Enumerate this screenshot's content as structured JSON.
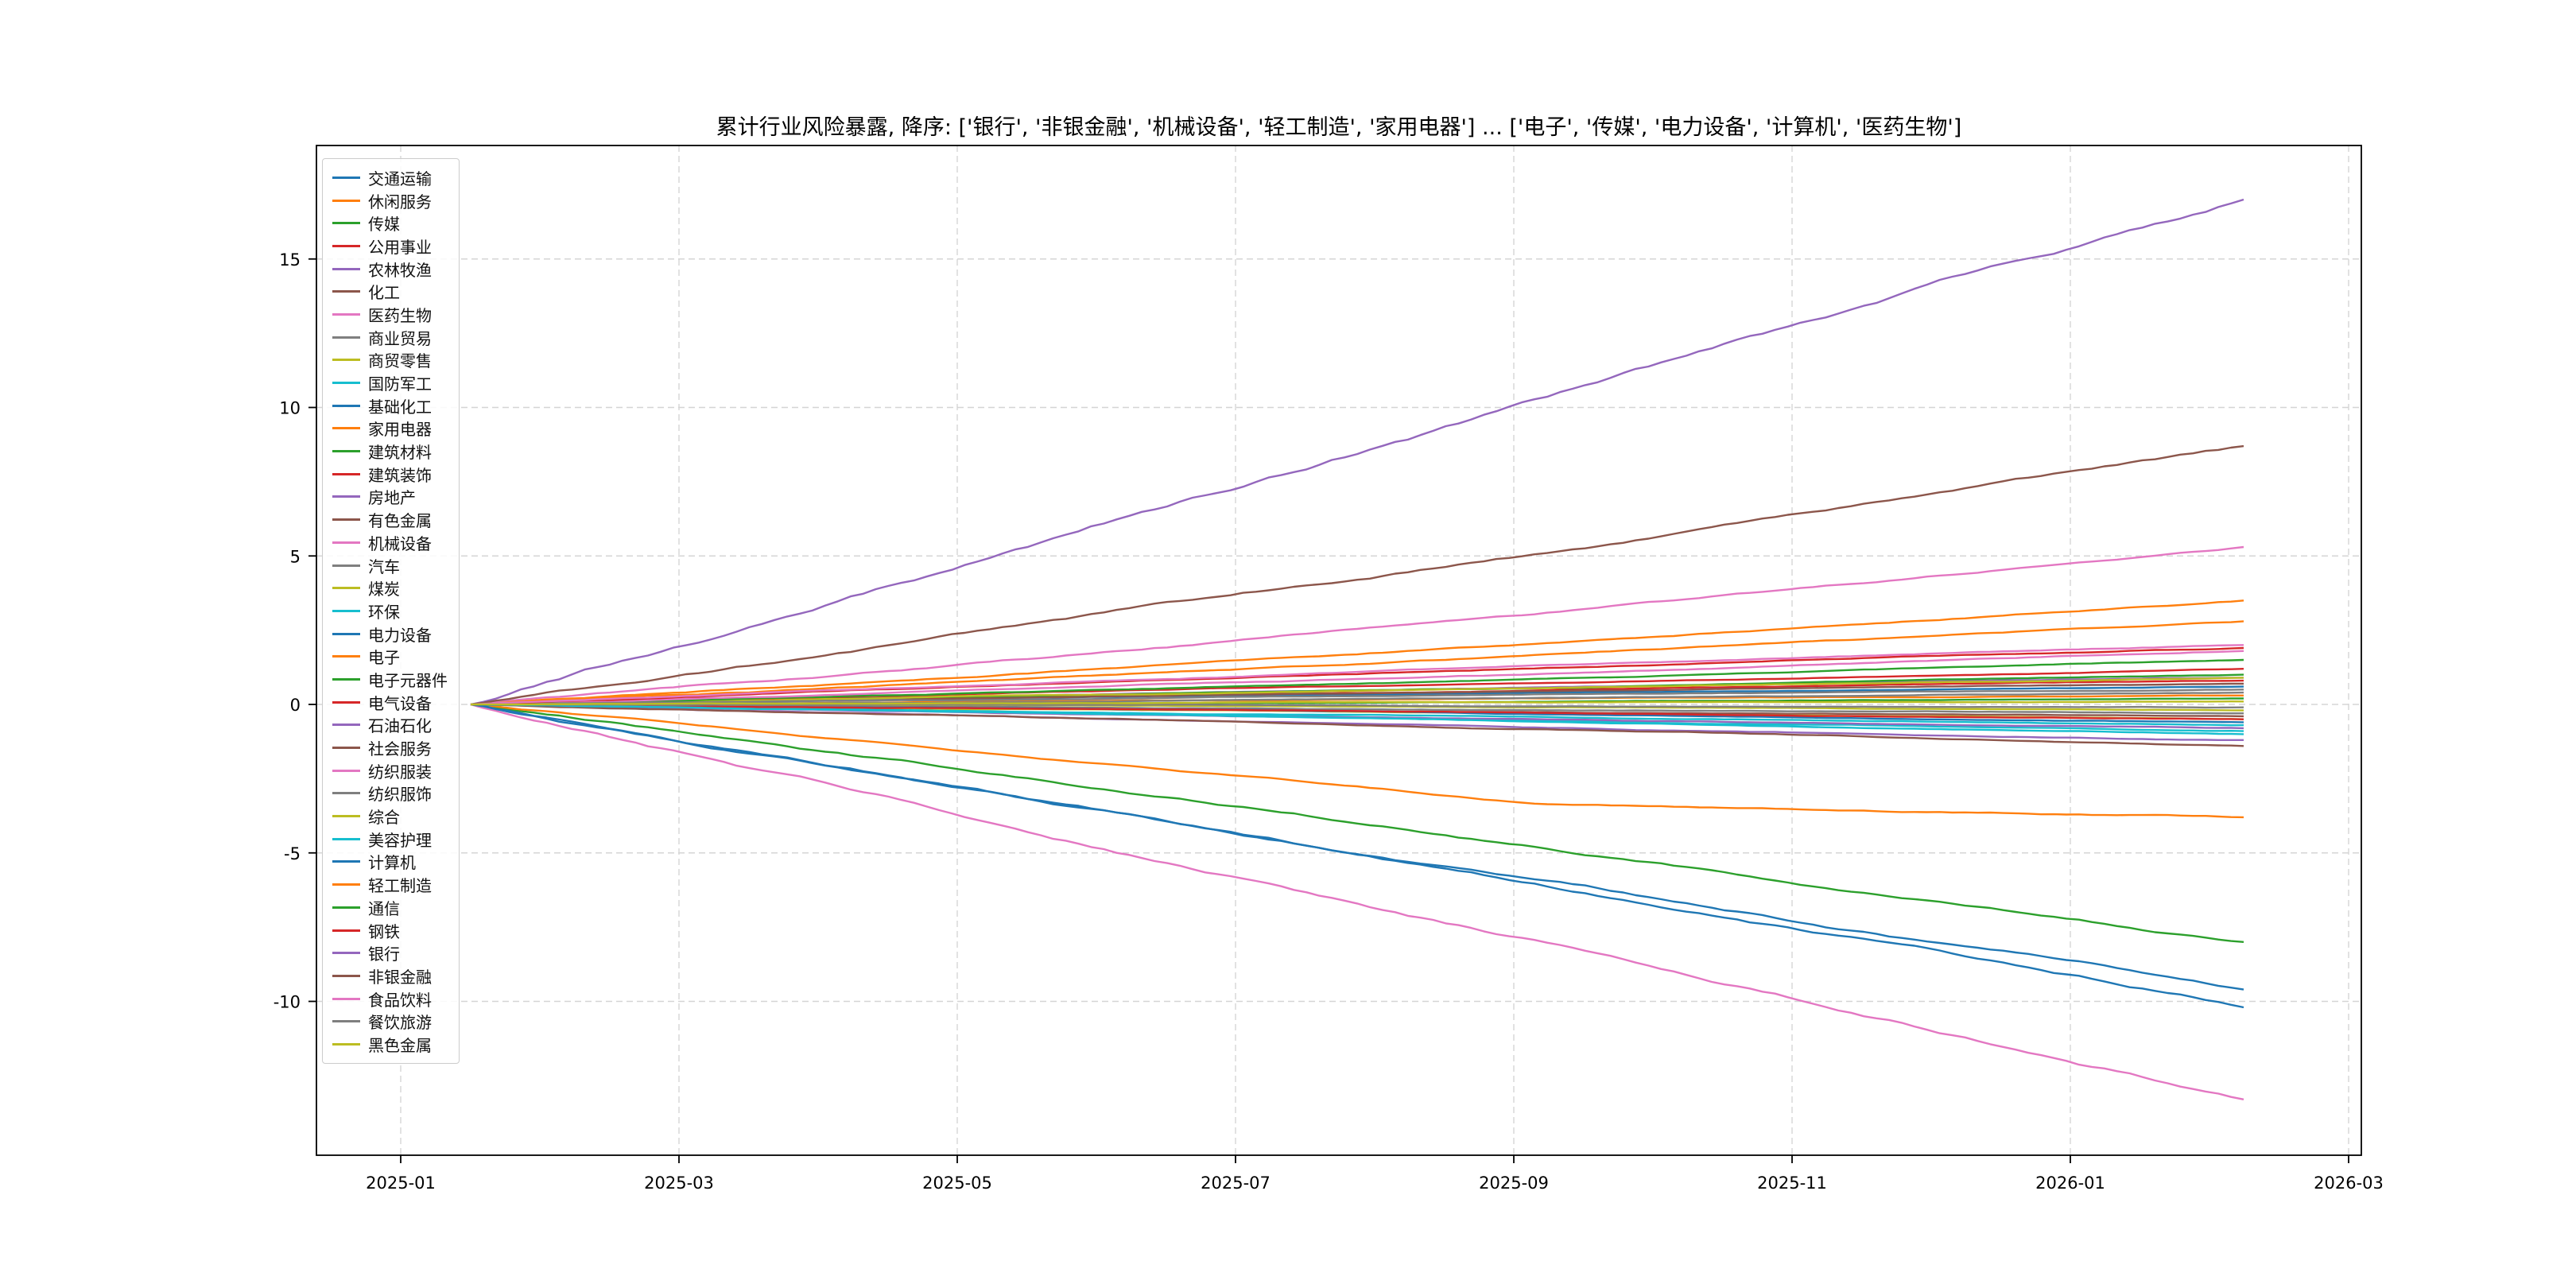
{
  "chart_data": {
    "type": "line",
    "title": "累计行业风险暴露, 降序: ['银行', '非银金融', '机械设备', '轻工制造', '家用电器'] ... ['电子', '传媒', '电力设备', '计算机', '医药生物']",
    "xlabel": "",
    "ylabel": "",
    "x_tick_labels": [
      "2025-01",
      "2025-03",
      "2025-05",
      "2025-07",
      "2025-09",
      "2025-11",
      "2026-01",
      "2026-03"
    ],
    "y_ticks": [
      -10,
      -5,
      0,
      5,
      10,
      15
    ],
    "ylim": [
      -15.2,
      18.8
    ],
    "x_data_start": "2025-01-15",
    "x_data_end": "2026-02-08",
    "grid": true,
    "grid_style": "dashed",
    "legend_position": "upper left",
    "top5_desc": [
      "银行",
      "非银金融",
      "机械设备",
      "轻工制造",
      "家用电器"
    ],
    "bottom5_desc": [
      "电子",
      "传媒",
      "电力设备",
      "计算机",
      "医药生物"
    ],
    "series": [
      {
        "name": "交通运输",
        "color": "#1f77b4",
        "start": 0,
        "end": 0.6
      },
      {
        "name": "休闲服务",
        "color": "#ff7f0e",
        "start": 0,
        "end": 0.3
      },
      {
        "name": "传媒",
        "color": "#2ca02c",
        "start": 0,
        "end": -8.0
      },
      {
        "name": "公用事业",
        "color": "#d62728",
        "start": 0,
        "end": 0.8
      },
      {
        "name": "农林牧渔",
        "color": "#9467bd",
        "start": 0,
        "end": 0.9
      },
      {
        "name": "化工",
        "color": "#8c564b",
        "start": 0,
        "end": -0.4
      },
      {
        "name": "医药生物",
        "color": "#e377c2",
        "start": 0,
        "end": -13.3
      },
      {
        "name": "商业贸易",
        "color": "#7f7f7f",
        "start": 0,
        "end": -0.3
      },
      {
        "name": "商贸零售",
        "color": "#bcbd22",
        "start": 0,
        "end": -0.5
      },
      {
        "name": "国防军工",
        "color": "#17becf",
        "start": 0,
        "end": -0.9
      },
      {
        "name": "基础化工",
        "color": "#1f77b4",
        "start": 0,
        "end": -0.6
      },
      {
        "name": "家用电器",
        "color": "#ff7f0e",
        "start": 0,
        "end": 2.8
      },
      {
        "name": "建筑材料",
        "color": "#2ca02c",
        "start": 0,
        "end": 1.0
      },
      {
        "name": "建筑装饰",
        "color": "#d62728",
        "start": 0,
        "end": 1.2
      },
      {
        "name": "房地产",
        "color": "#9467bd",
        "start": 0,
        "end": -1.2
      },
      {
        "name": "有色金属",
        "color": "#8c564b",
        "start": 0,
        "end": 0.7
      },
      {
        "name": "机械设备",
        "color": "#e377c2",
        "start": 0,
        "end": 5.3
      },
      {
        "name": "汽车",
        "color": "#7f7f7f",
        "start": 0,
        "end": 0.4
      },
      {
        "name": "煤炭",
        "color": "#bcbd22",
        "start": 0,
        "end": 0.9
      },
      {
        "name": "环保",
        "color": "#17becf",
        "start": 0,
        "end": -0.7
      },
      {
        "name": "电力设备",
        "color": "#1f77b4",
        "start": 0,
        "end": -9.6
      },
      {
        "name": "电子",
        "color": "#ff7f0e",
        "start": 0,
        "end": -3.8,
        "mid": -3.3
      },
      {
        "name": "电子元器件",
        "color": "#2ca02c",
        "start": 0,
        "end": 1.5
      },
      {
        "name": "电气设备",
        "color": "#d62728",
        "start": 0,
        "end": -0.5
      },
      {
        "name": "石油石化",
        "color": "#9467bd",
        "start": 0,
        "end": -0.8
      },
      {
        "name": "社会服务",
        "color": "#8c564b",
        "start": 0,
        "end": -1.4
      },
      {
        "name": "纺织服装",
        "color": "#e377c2",
        "start": 0,
        "end": 1.8
      },
      {
        "name": "纺织服饰",
        "color": "#7f7f7f",
        "start": 0,
        "end": 0.5
      },
      {
        "name": "综合",
        "color": "#bcbd22",
        "start": 0,
        "end": -0.2
      },
      {
        "name": "美容护理",
        "color": "#17becf",
        "start": 0,
        "end": -1.0
      },
      {
        "name": "计算机",
        "color": "#1f77b4",
        "start": 0,
        "end": -10.2
      },
      {
        "name": "轻工制造",
        "color": "#ff7f0e",
        "start": 0,
        "end": 3.5
      },
      {
        "name": "通信",
        "color": "#2ca02c",
        "start": 0,
        "end": 0.2
      },
      {
        "name": "钢铁",
        "color": "#d62728",
        "start": 0,
        "end": 1.9
      },
      {
        "name": "银行",
        "color": "#9467bd",
        "start": 0,
        "end": 17.0
      },
      {
        "name": "非银金融",
        "color": "#8c564b",
        "start": 0,
        "end": 8.7
      },
      {
        "name": "食品饮料",
        "color": "#e377c2",
        "start": 0,
        "end": 2.0
      },
      {
        "name": "餐饮旅游",
        "color": "#7f7f7f",
        "start": 0,
        "end": -0.1
      },
      {
        "name": "黑色金属",
        "color": "#bcbd22",
        "start": 0,
        "end": 0.1
      }
    ]
  }
}
